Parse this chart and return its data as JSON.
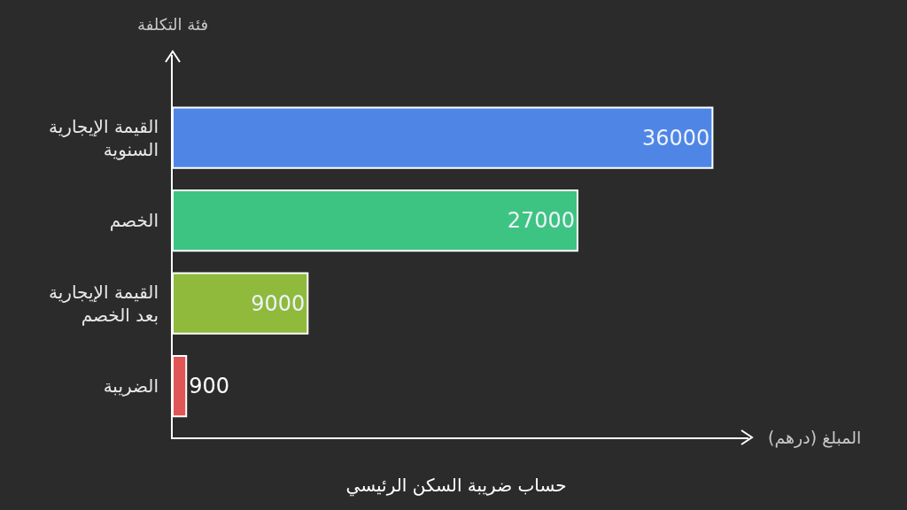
{
  "chart_data": {
    "type": "bar",
    "orientation": "horizontal",
    "title": "حساب ضريبة السكن الرئيسي",
    "xlabel": "المبلغ (درهم)",
    "ylabel": "فئة التكلفة",
    "categories": [
      "القيمة الإيجارية السنوية",
      "الخصم",
      "القيمة الإيجارية بعد الخصم",
      "الضريبة"
    ],
    "values": [
      36000,
      27000,
      9000,
      900
    ],
    "colors": [
      "#4f86e6",
      "#3ec482",
      "#8fba3c",
      "#e05555"
    ],
    "xlim": [
      0,
      38400
    ],
    "tick_labels": "y",
    "data_labels": true
  }
}
